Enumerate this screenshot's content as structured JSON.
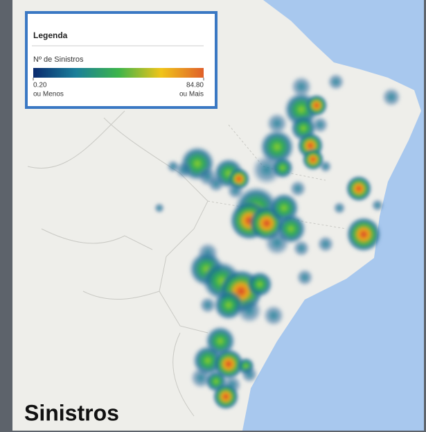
{
  "map": {
    "legend": {
      "title": "Legenda",
      "measure": "Nº de Sinistros",
      "min": {
        "value": 0.2,
        "label": "0.20",
        "caption": "ou Menos"
      },
      "max": {
        "value": 84.8,
        "label": "84.80",
        "caption": "ou Mais"
      }
    },
    "caption": "Sinistros"
  }
}
